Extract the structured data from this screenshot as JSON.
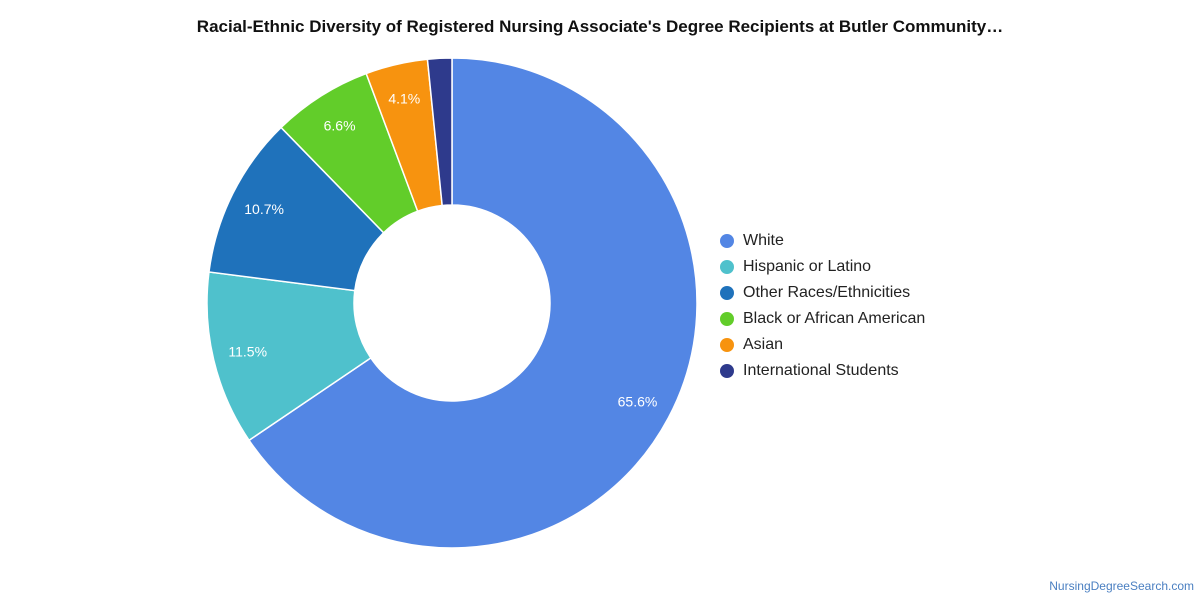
{
  "chart_data": {
    "type": "pie",
    "title": "Racial-Ethnic Diversity of Registered Nursing Associate's Degree Recipients at Butler Community…",
    "donut": true,
    "legend_position": "right",
    "series": [
      {
        "name": "White",
        "value": 65.6,
        "label": "65.6%",
        "color": "#5386E4"
      },
      {
        "name": "Hispanic or Latino",
        "value": 11.5,
        "label": "11.5%",
        "color": "#4FC1CC"
      },
      {
        "name": "Other Races/Ethnicities",
        "value": 10.7,
        "label": "10.7%",
        "color": "#1F72BB"
      },
      {
        "name": "Black or African American",
        "value": 6.6,
        "label": "6.6%",
        "color": "#62CD2A"
      },
      {
        "name": "Asian",
        "value": 4.1,
        "label": "4.1%",
        "color": "#F7930F"
      },
      {
        "name": "International Students",
        "value": 1.6,
        "label": "",
        "color": "#2E3A8C"
      }
    ]
  },
  "watermark": "NursingDegreeSearch.com"
}
